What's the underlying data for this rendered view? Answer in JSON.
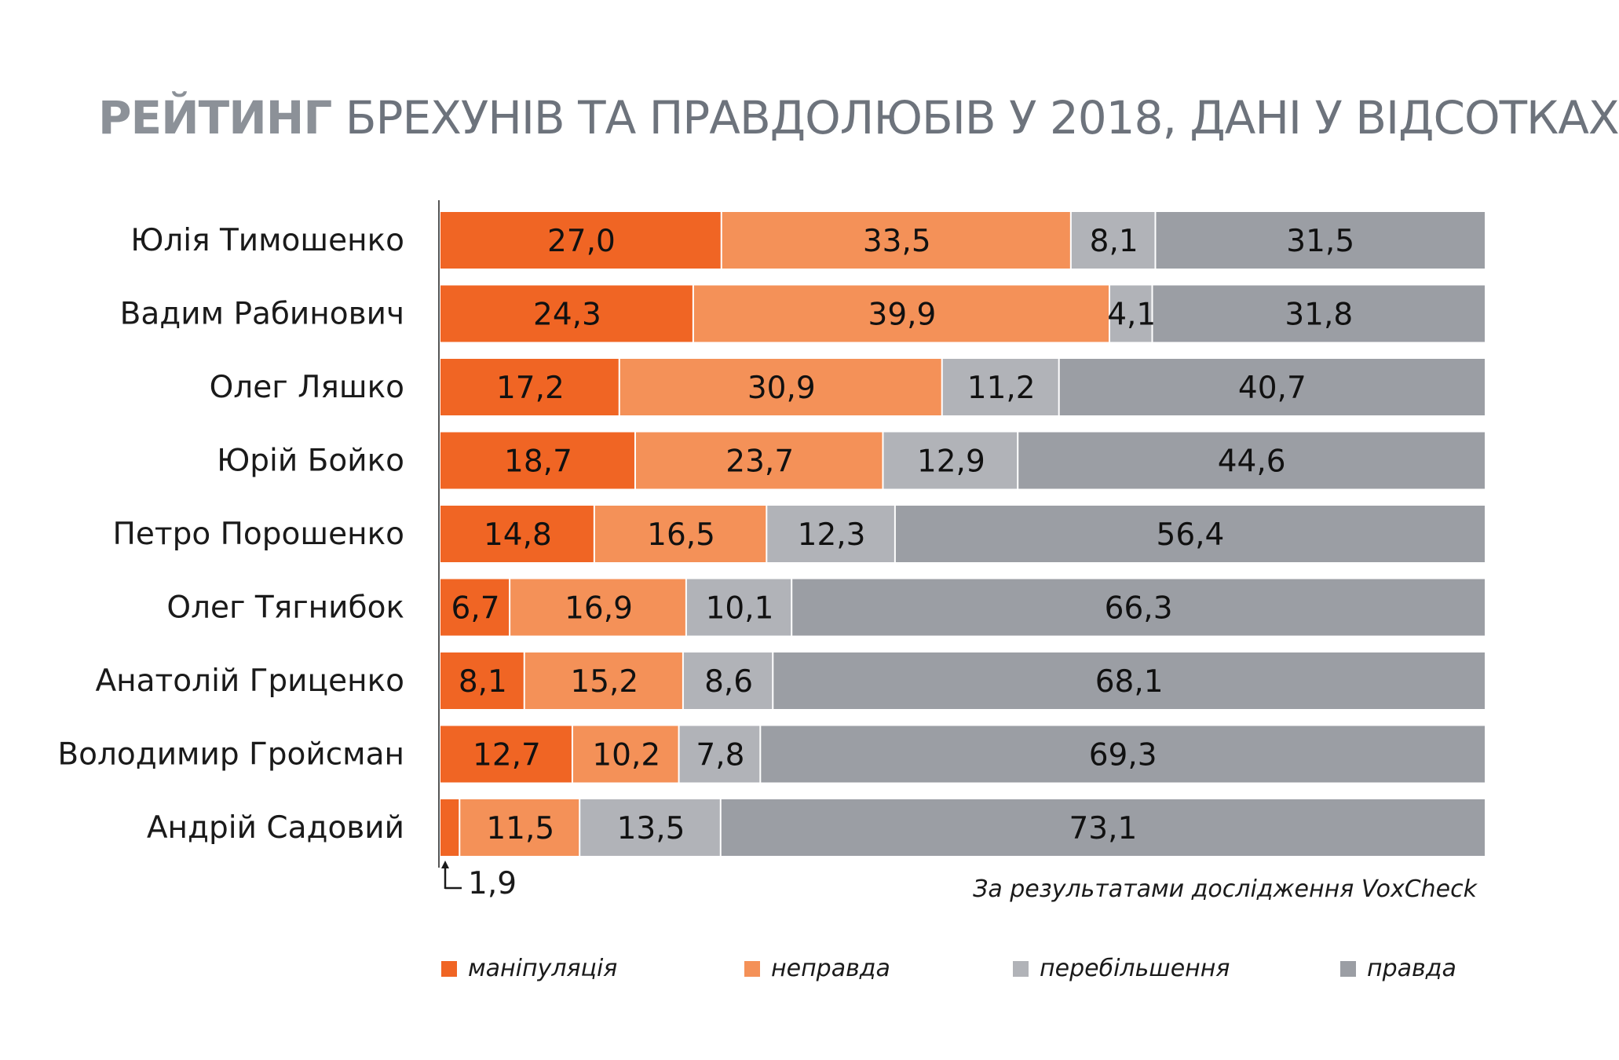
{
  "title": {
    "bold": "РЕЙТИНГ",
    "rest": " БРЕХУНІВ ТА ПРАВДОЛЮБІВ У 2018, ДАНІ У ВІДСОТКАХ"
  },
  "source": "За результатами дослідження VoxCheck",
  "footnote": "1,9",
  "legend": [
    {
      "label": "маніпуляція",
      "color": "#f06524"
    },
    {
      "label": "неправда",
      "color": "#f49158"
    },
    {
      "label": "перебільшення",
      "color": "#b1b3b8"
    },
    {
      "label": "правда",
      "color": "#9b9ea4"
    }
  ],
  "chart_data": {
    "type": "bar",
    "orientation": "horizontal",
    "stacked": true,
    "title": "РЕЙТИНГ БРЕХУНІВ ТА ПРАВДОЛЮБІВ У 2018, ДАНІ У ВІДСОТКАХ",
    "categories": [
      "Юлія Тимошенко",
      "Вадим Рабинович",
      "Олег Ляшко",
      "Юрій Бойко",
      "Петро Порошенко",
      "Олег Тягнибок",
      "Анатолій Гриценко",
      "Володимир Гройсман",
      "Андрій Садовий"
    ],
    "series": [
      {
        "name": "маніпуляція",
        "color": "#f06524",
        "values": [
          27.0,
          24.3,
          17.2,
          18.7,
          14.8,
          6.7,
          8.1,
          12.7,
          1.9
        ],
        "labels": [
          "27,0",
          "24,3",
          "17,2",
          "18,7",
          "14,8",
          "6,7",
          "8,1",
          "12,7",
          ""
        ]
      },
      {
        "name": "неправда",
        "color": "#f49158",
        "values": [
          33.5,
          39.9,
          30.9,
          23.7,
          16.5,
          16.9,
          15.2,
          10.2,
          11.5
        ],
        "labels": [
          "33,5",
          "39,9",
          "30,9",
          "23,7",
          "16,5",
          "16,9",
          "15,2",
          "10,2",
          "11,5"
        ]
      },
      {
        "name": "перебільшення",
        "color": "#b1b3b8",
        "values": [
          8.1,
          4.1,
          11.2,
          12.9,
          12.3,
          10.1,
          8.6,
          7.8,
          13.5
        ],
        "labels": [
          "8,1",
          "4,1",
          "11,2",
          "12,9",
          "12,3",
          "10,1",
          "8,6",
          "7,8",
          "13,5"
        ]
      },
      {
        "name": "правда",
        "color": "#9b9ea4",
        "values": [
          31.5,
          31.8,
          40.7,
          44.6,
          56.4,
          66.3,
          68.1,
          69.3,
          73.1
        ],
        "labels": [
          "31,5",
          "31,8",
          "40,7",
          "44,6",
          "56,4",
          "66,3",
          "68,1",
          "69,3",
          "73,1"
        ]
      }
    ],
    "legend_position": "bottom",
    "grid": false
  }
}
